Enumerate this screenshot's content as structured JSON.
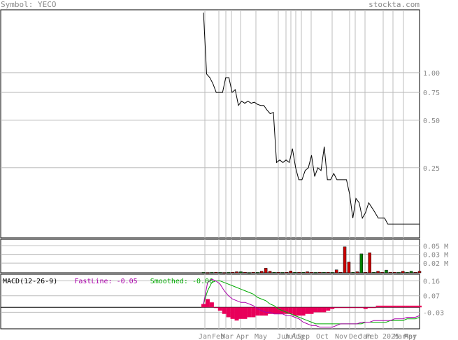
{
  "header": {
    "symbol_label": "Symbol: YECO",
    "brand": "stockta.com"
  },
  "colors": {
    "price_line": "#000000",
    "grid": "#bdbdbd",
    "volume_up": "#008000",
    "volume_down": "#cc0000",
    "macd_hist": "#e8005a",
    "fastline": "#aa00aa",
    "smoothed": "#00aa00",
    "label": "#888888"
  },
  "chart_data": [
    {
      "type": "line",
      "name": "price",
      "y_scale": "log",
      "y_ticks": [
        "1.00",
        "0.75",
        "0.50",
        "0.25"
      ],
      "x_ticks": [
        "Jan",
        "Feb",
        "Mar",
        "Apr",
        "May",
        "Jun",
        "Jul",
        "Aug",
        "Sep",
        "Oct",
        "Nov",
        "Dec",
        "Jan",
        "Feb",
        "2025",
        "Mar",
        "Apr",
        "May"
      ],
      "ylim": [
        0.09,
        2.5
      ],
      "y": [
        2.4,
        0.98,
        0.93,
        0.85,
        0.75,
        0.75,
        0.75,
        0.93,
        0.93,
        0.75,
        0.78,
        0.62,
        0.66,
        0.64,
        0.66,
        0.64,
        0.65,
        0.63,
        0.62,
        0.62,
        0.58,
        0.55,
        0.56,
        0.27,
        0.28,
        0.27,
        0.28,
        0.27,
        0.33,
        0.25,
        0.21,
        0.21,
        0.24,
        0.25,
        0.3,
        0.22,
        0.25,
        0.24,
        0.34,
        0.21,
        0.21,
        0.23,
        0.21,
        0.21,
        0.21,
        0.21,
        0.17,
        0.12,
        0.16,
        0.15,
        0.12,
        0.13,
        0.15,
        0.14,
        0.13,
        0.12,
        0.12,
        0.12,
        0.11,
        0.11,
        0.11,
        0.11,
        0.11,
        0.11,
        0.11,
        0.11,
        0.11,
        0.11,
        0.11
      ]
    },
    {
      "type": "bar",
      "name": "volume",
      "y_ticks": [
        "0.05 M",
        "0.03 M",
        "0.02 M"
      ],
      "ylim": [
        0,
        0.062
      ],
      "bars": [
        {
          "v": 0.0008,
          "up": true
        },
        {
          "v": 0.0006,
          "up": false
        },
        {
          "v": 0.0008,
          "up": true
        },
        {
          "v": 0.001,
          "up": false
        },
        {
          "v": 0.0008,
          "up": true
        },
        {
          "v": 0.0006,
          "up": false
        },
        {
          "v": 0.0008,
          "up": true
        },
        {
          "v": 0.001,
          "up": false
        },
        {
          "v": 0.002,
          "up": false
        },
        {
          "v": 0.002,
          "up": true
        },
        {
          "v": 0.001,
          "up": false
        },
        {
          "v": 0.0006,
          "up": true
        },
        {
          "v": 0.001,
          "up": false
        },
        {
          "v": 0.0008,
          "up": true
        },
        {
          "v": 0.003,
          "up": false
        },
        {
          "v": 0.0085,
          "up": false
        },
        {
          "v": 0.003,
          "up": false
        },
        {
          "v": 0.001,
          "up": true
        },
        {
          "v": 0.001,
          "up": false
        },
        {
          "v": 0.0008,
          "up": true
        },
        {
          "v": 0.001,
          "up": false
        },
        {
          "v": 0.0035,
          "up": false
        },
        {
          "v": 0.001,
          "up": true
        },
        {
          "v": 0.001,
          "up": false
        },
        {
          "v": 0.001,
          "up": true
        },
        {
          "v": 0.002,
          "up": false
        },
        {
          "v": 0.001,
          "up": false
        },
        {
          "v": 0.0008,
          "up": true
        },
        {
          "v": 0.001,
          "up": false
        },
        {
          "v": 0.001,
          "up": true
        },
        {
          "v": 0.001,
          "up": false
        },
        {
          "v": 0.0008,
          "up": true
        },
        {
          "v": 0.0055,
          "up": false
        },
        {
          "v": 0.001,
          "up": false
        },
        {
          "v": 0.048,
          "up": false
        },
        {
          "v": 0.02,
          "up": false
        },
        {
          "v": 0.001,
          "up": true
        },
        {
          "v": 0.002,
          "up": false
        },
        {
          "v": 0.035,
          "up": true
        },
        {
          "v": 0.001,
          "up": false
        },
        {
          "v": 0.037,
          "up": false
        },
        {
          "v": 0.001,
          "up": true
        },
        {
          "v": 0.003,
          "up": false
        },
        {
          "v": 0.001,
          "up": false
        },
        {
          "v": 0.005,
          "up": true
        },
        {
          "v": 0.001,
          "up": false
        },
        {
          "v": 0.001,
          "up": false
        },
        {
          "v": 0.0008,
          "up": true
        },
        {
          "v": 0.003,
          "up": false
        },
        {
          "v": 0.001,
          "up": true
        },
        {
          "v": 0.003,
          "up": true
        },
        {
          "v": 0.001,
          "up": false
        },
        {
          "v": 0.003,
          "up": false
        }
      ]
    },
    {
      "type": "line",
      "name": "macd",
      "label": "MACD(12-26-9)",
      "fastline_label": "FastLine: -0.05",
      "smoothed_label": "Smoothed: -0.06",
      "y_ticks": [
        "0.16",
        "0.07",
        "-0.03"
      ],
      "ylim": [
        -0.13,
        0.2
      ],
      "fast": [
        0.02,
        0.15,
        0.17,
        0.16,
        0.14,
        0.1,
        0.07,
        0.05,
        0.04,
        0.03,
        0.03,
        0.02,
        0.01,
        -0.01,
        -0.02,
        -0.03,
        -0.03,
        -0.04,
        -0.04,
        -0.04,
        -0.05,
        -0.05,
        -0.06,
        -0.07,
        -0.09,
        -0.1,
        -0.11,
        -0.11,
        -0.12,
        -0.12,
        -0.12,
        -0.12,
        -0.11,
        -0.1,
        -0.1,
        -0.1,
        -0.1,
        -0.1,
        -0.09,
        -0.09,
        -0.09,
        -0.08,
        -0.08,
        -0.08,
        -0.08,
        -0.08,
        -0.07,
        -0.07,
        -0.07,
        -0.06,
        -0.06,
        -0.06,
        -0.05
      ],
      "smooth": [
        0.02,
        0.1,
        0.15,
        0.16,
        0.16,
        0.15,
        0.14,
        0.13,
        0.12,
        0.11,
        0.1,
        0.09,
        0.08,
        0.06,
        0.05,
        0.04,
        0.02,
        0.01,
        -0.01,
        -0.02,
        -0.03,
        -0.04,
        -0.05,
        -0.06,
        -0.07,
        -0.08,
        -0.09,
        -0.1,
        -0.1,
        -0.1,
        -0.1,
        -0.1,
        -0.1,
        -0.1,
        -0.1,
        -0.1,
        -0.1,
        -0.1,
        -0.1,
        -0.09,
        -0.09,
        -0.09,
        -0.09,
        -0.09,
        -0.09,
        -0.08,
        -0.08,
        -0.08,
        -0.08,
        -0.07,
        -0.07,
        -0.07,
        -0.06
      ],
      "hist": [
        0.02,
        0.05,
        0.03,
        -0.0,
        -0.02,
        -0.04,
        -0.06,
        -0.07,
        -0.08,
        -0.07,
        -0.07,
        -0.06,
        -0.06,
        -0.05,
        -0.05,
        -0.05,
        -0.04,
        -0.04,
        -0.04,
        -0.04,
        -0.04,
        -0.04,
        -0.05,
        -0.05,
        -0.05,
        -0.04,
        -0.04,
        -0.03,
        -0.03,
        -0.03,
        -0.02,
        -0.01,
        -0.0,
        0.0,
        0.0,
        0.0,
        0.0,
        0.0,
        0.0,
        -0.01,
        0.0,
        0.0,
        0.01,
        0.01,
        0.01,
        0.01,
        0.01,
        0.01,
        0.01,
        0.01,
        0.01,
        0.01,
        0.01
      ]
    }
  ]
}
